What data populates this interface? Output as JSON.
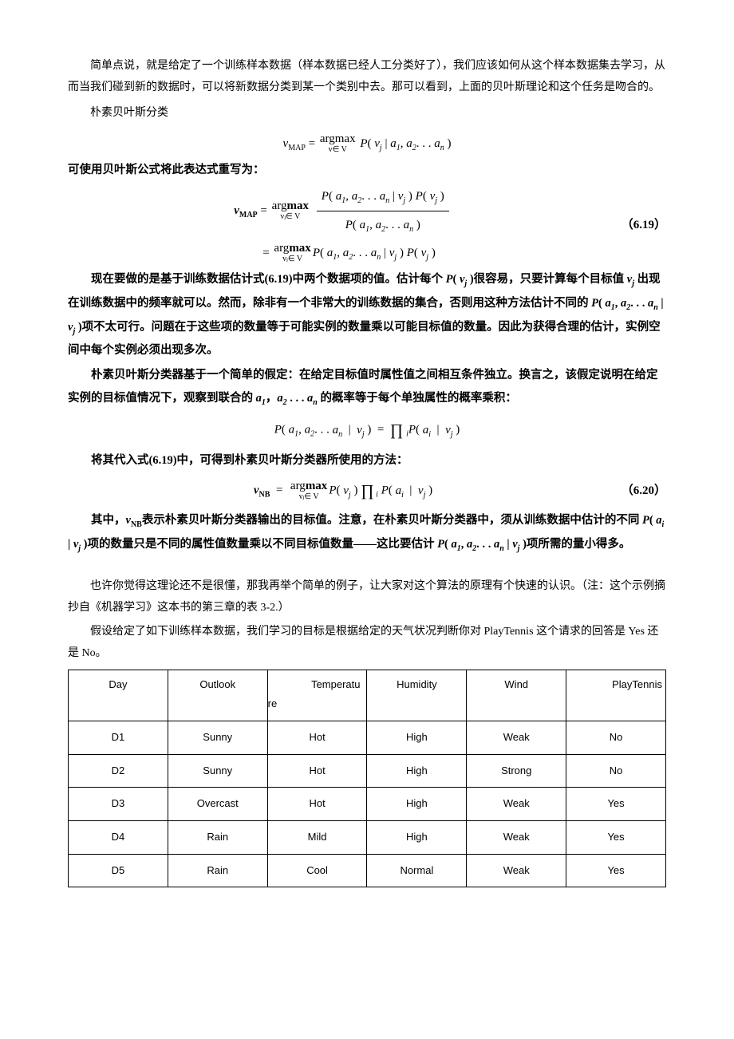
{
  "p1": "简单点说，就是给定了一个训练样本数据（样本数据已经人工分类好了），我们应该如何从这个样本数据集去学习，从而当我们碰到新的数据时，可以将新数据分类到某一个类别中去。那可以看到，上面的贝叶斯理论和这个任务是吻合的。",
  "p2": "朴素贝叶斯分类",
  "b_intro": "可使用贝叶斯公式将此表达式重写为：",
  "eq2_num": "（6.19）",
  "bp1a": "现在要做的是基于训练数据估计式(6.19)中两个数据项的值。估计每个 ",
  "bp1b": "很容易，只要计算每个目标值 ",
  "bp1c": " 出现在训练数据中的频率就可以。然而，除非有一个非常大的训练数据的集合，否则用这种方法估计不同的 ",
  "bp1d": "项不太可行。问题在于这些项的数量等于可能实例的数量乘以可能目标值的数量。因此为获得合理的估计，实例空间中每个实例必须出现多次。",
  "bp2a": "朴素贝叶斯分类器基于一个简单的假定：在给定目标值时属性值之间相互条件独立。换言之，该假定说明在给定实例的目标值情况下，观察到联合的 ",
  "bp2b": " 的概率等于每个单独属性的概率乘积：",
  "bp3": "将其代入式(6.19)中，可得到朴素贝叶斯分类器所使用的方法：",
  "eq4_num": "（6.20）",
  "bp4a": "其中，",
  "bp4b": "表示朴素贝叶斯分类器输出的目标值。注意，在朴素贝叶斯分类器中，须从训练数据中估计的不同 ",
  "bp4c": "项的数量只是不同的属性值数量乘以不同目标值数量——这比要估计 ",
  "bp4d": "项所需的量小得多。",
  "p3": "也许你觉得这理论还不是很懂，那我再举个简单的例子，让大家对这个算法的原理有个快速的认识。（注：这个示例摘抄自《机器学习》这本书的第三章的表 3-2.）",
  "p4a": "假设给定了如下训练样本数据，我们学习的目标是根据给定的天气状况判断你对 ",
  "p4b": " 这个请求的回答是 ",
  "p4c": " 还是 ",
  "p4d": "。",
  "play": "PlayTennis",
  "yes": "Yes",
  "no": "No",
  "headers": [
    "Day",
    "Outlook",
    "Temperature",
    "Humidity",
    "Wind",
    "PlayTennis"
  ],
  "rows": [
    [
      "D1",
      "Sunny",
      "Hot",
      "High",
      "Weak",
      "No"
    ],
    [
      "D2",
      "Sunny",
      "Hot",
      "High",
      "Strong",
      "No"
    ],
    [
      "D3",
      "Overcast",
      "Hot",
      "High",
      "Weak",
      "Yes"
    ],
    [
      "D4",
      "Rain",
      "Mild",
      "High",
      "Weak",
      "Yes"
    ],
    [
      "D5",
      "Rain",
      "Cool",
      "Normal",
      "Weak",
      "Yes"
    ]
  ],
  "math": {
    "vmap": "v",
    "map": "MAP",
    "nb": "NB",
    "Pvj": "P( v",
    "j": "j",
    "close": " )",
    "argmax_top": "argmax",
    "argmax_bot_vj": "vⱼ∈ V",
    "argmax_bot_v": "v∈ V",
    "Pcond": "P( v",
    "given": " | a",
    "one": "1",
    "comma_a": ", a",
    "two": "2",
    "dots_a": ". . . a",
    "n": "n",
    "Pa": "P( a",
    "given_v": " | v",
    "prod": "∏",
    "prod_sub": "i",
    "Pai": "P( a",
    "i": "i",
    "a1a2an": "a₁，a₂ . . . aₙ"
  }
}
